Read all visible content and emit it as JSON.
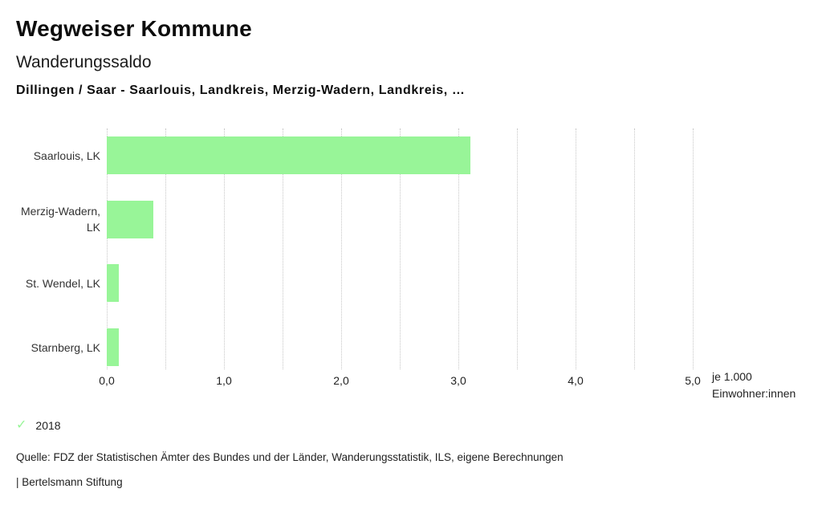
{
  "header": {
    "app_title": "Wegweiser Kommune",
    "chart_title": "Wanderungssaldo",
    "chart_subtitle": "Dillingen / Saar - Saarlouis, Landkreis, Merzig-Wadern, Landkreis, …"
  },
  "chart_data": {
    "type": "bar",
    "orientation": "horizontal",
    "title": "Wanderungssaldo",
    "subtitle": "Dillingen / Saar - Saarlouis, Landkreis, Merzig-Wadern, Landkreis, …",
    "categories": [
      "Saarlouis, LK",
      "Merzig-Wadern, LK",
      "St. Wendel, LK",
      "Starnberg, LK"
    ],
    "category_display": [
      "Saarlouis, LK",
      "Merzig-Wadern,\nLK",
      "St. Wendel, LK",
      "Starnberg, LK"
    ],
    "series": [
      {
        "name": "2018",
        "values": [
          3.1,
          0.4,
          0.1,
          0.1
        ]
      }
    ],
    "xlim": [
      0,
      5
    ],
    "grid_values": [
      0,
      0.5,
      1,
      1.5,
      2,
      2.5,
      3,
      3.5,
      4,
      4.5,
      5
    ],
    "xticks": [
      {
        "v": 0,
        "label": "0,0"
      },
      {
        "v": 1,
        "label": "1,0"
      },
      {
        "v": 2,
        "label": "2,0"
      },
      {
        "v": 3,
        "label": "3,0"
      },
      {
        "v": 4,
        "label": "4,0"
      },
      {
        "v": 5,
        "label": "5,0"
      }
    ],
    "xlabel": "je 1.000 Einwohner:innen",
    "xlabel_lines": [
      "je 1.000",
      "Einwohner:innen"
    ],
    "grid": "vertical-dotted",
    "legend_position": "bottom-left",
    "bar_color": "#98F598"
  },
  "legend": {
    "check_glyph": "✓",
    "label": "2018"
  },
  "footer": {
    "source": "Quelle: FDZ der Statistischen Ämter des Bundes und der Länder, Wanderungsstatistik, ILS, eigene Berechnungen",
    "attribution": "| Bertelsmann Stiftung"
  },
  "colors": {
    "bar_green": "#98F598",
    "gridline": "#C6C6C6",
    "title_text": "#0D0D0D",
    "body_text": "#222222"
  }
}
